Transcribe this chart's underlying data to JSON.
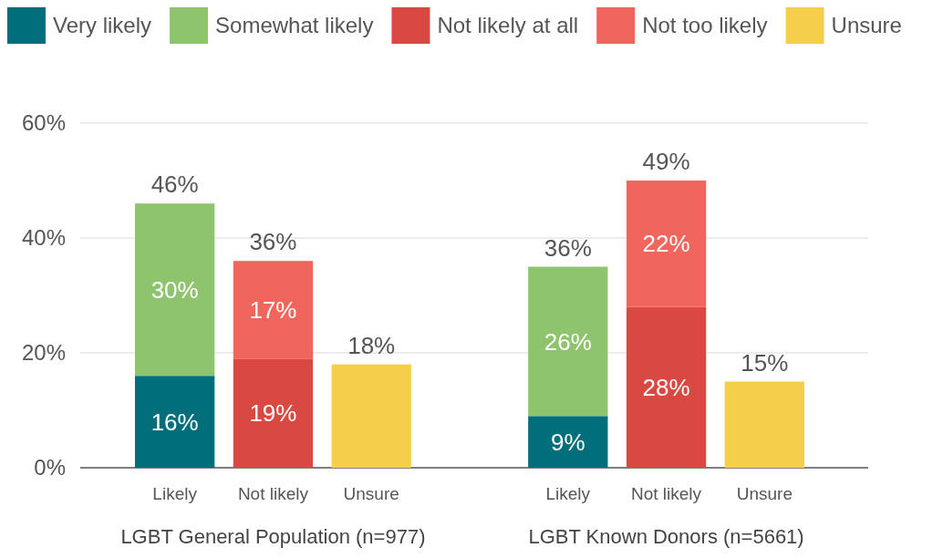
{
  "chart_data": {
    "type": "bar",
    "stacked": true,
    "categories": [
      "Likely",
      "Not likely",
      "Unsure",
      null,
      "Likely",
      "Not likely",
      "Unsure"
    ],
    "series": [
      {
        "name": "Very likely",
        "color": "#016f7b",
        "values": [
          16,
          null,
          null,
          null,
          9,
          null,
          null
        ],
        "value_labels": [
          "16%",
          null,
          null,
          null,
          "9%",
          null,
          null
        ]
      },
      {
        "name": "Somewhat likely",
        "color": "#8fc46e",
        "values": [
          30,
          null,
          null,
          null,
          26,
          null,
          null
        ],
        "value_labels": [
          "30%",
          null,
          null,
          null,
          "26%",
          null,
          null
        ]
      },
      {
        "name": "Not likely at all",
        "color": "#d94841",
        "values": [
          null,
          19,
          null,
          null,
          null,
          28,
          null
        ],
        "value_labels": [
          null,
          "19%",
          null,
          null,
          null,
          "28%",
          null
        ]
      },
      {
        "name": "Not too likely",
        "color": "#f1665c",
        "values": [
          null,
          17,
          null,
          null,
          null,
          22,
          null
        ],
        "value_labels": [
          null,
          "17%",
          null,
          null,
          null,
          "22%",
          null
        ]
      },
      {
        "name": "Unsure",
        "color": "#f6cf4a",
        "values": [
          null,
          null,
          18,
          null,
          null,
          null,
          15
        ]
      }
    ],
    "totals": [
      "46%",
      "36%",
      "18%",
      null,
      "36%",
      "49%",
      "15%"
    ],
    "ylim": [
      0,
      60
    ],
    "yticks": [
      {
        "value": 0,
        "label": "0%"
      },
      {
        "value": 20,
        "label": "20%"
      },
      {
        "value": 40,
        "label": "40%"
      },
      {
        "value": 60,
        "label": "60%"
      }
    ],
    "grid": "y",
    "legend": "top",
    "annotations": [
      "LGBT General Population (n=977)",
      "LGBT Known Donors (n=5661)"
    ]
  }
}
